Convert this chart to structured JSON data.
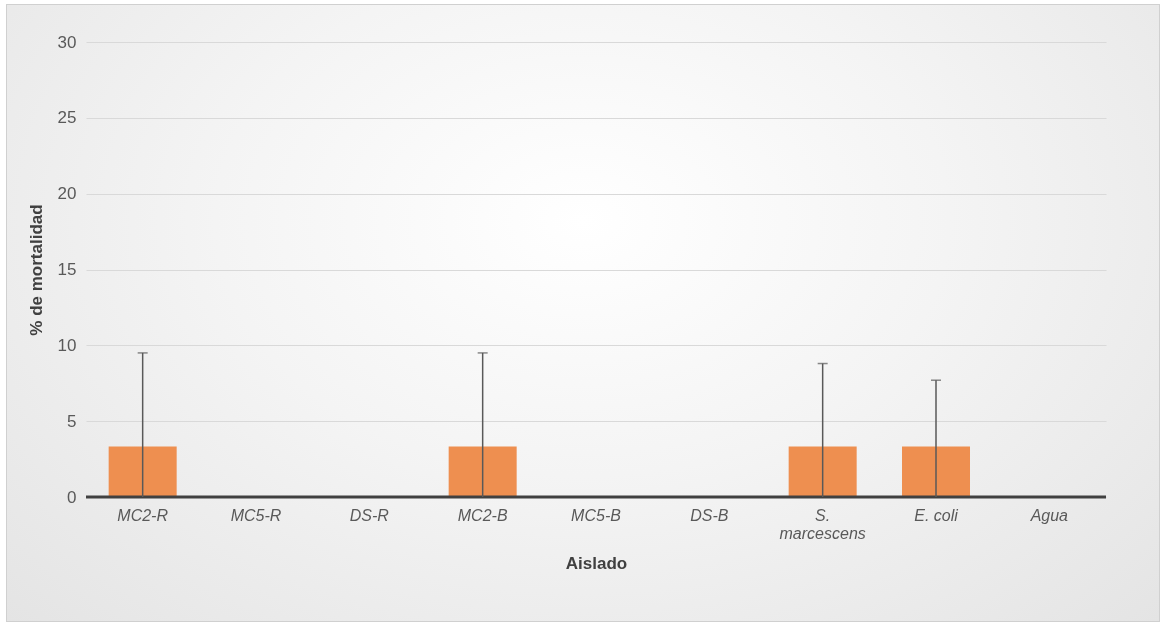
{
  "chart_data": {
    "type": "bar",
    "xlabel": "Aislado",
    "ylabel": "% de mortalidad",
    "categories": [
      "MC2-R",
      "MC5-R",
      "DS-R",
      "MC2-B",
      "MC5-B",
      "DS-B",
      "S. marcescens",
      "E. coli",
      "Agua"
    ],
    "values": [
      3.33,
      0,
      0,
      3.33,
      0,
      0,
      3.33,
      3.33,
      0
    ],
    "errors": [
      [
        0,
        9.5
      ],
      null,
      null,
      [
        0,
        9.5
      ],
      null,
      null,
      [
        0,
        8.8
      ],
      [
        0,
        7.7
      ],
      null
    ],
    "color": "#ee8f50",
    "ylim": [
      0,
      30
    ],
    "yticks": [
      0,
      5,
      10,
      15,
      20,
      25,
      30
    ],
    "grid": "y"
  }
}
